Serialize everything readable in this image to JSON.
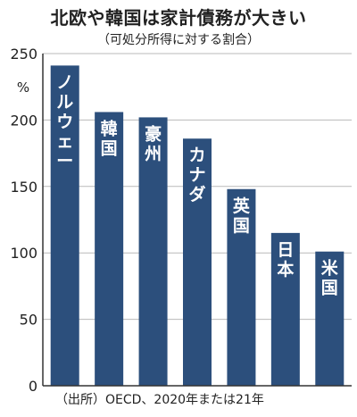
{
  "chart_data": {
    "type": "bar",
    "title": "北欧や韓国は家計債務が大きい",
    "subtitle": "（可処分所得に対する割合）",
    "ylabel": "%",
    "categories": [
      "ノルウェー",
      "韓国",
      "豪州",
      "カナダ",
      "英国",
      "日本",
      "米国"
    ],
    "values": [
      241,
      206,
      202,
      186,
      148,
      115,
      101
    ],
    "ylim": [
      0,
      250
    ],
    "yticks": [
      0,
      50,
      100,
      150,
      200,
      250
    ],
    "ytick_labels": [
      "0",
      "50",
      "100",
      "150",
      "200",
      "250"
    ],
    "grid": true,
    "source": "（出所）OECD、2020年または21年",
    "colors": {
      "bar": "#2c4f7c",
      "bar_label": "#ffffff",
      "grid": "#b9b9b9",
      "axis": "#333333"
    }
  }
}
